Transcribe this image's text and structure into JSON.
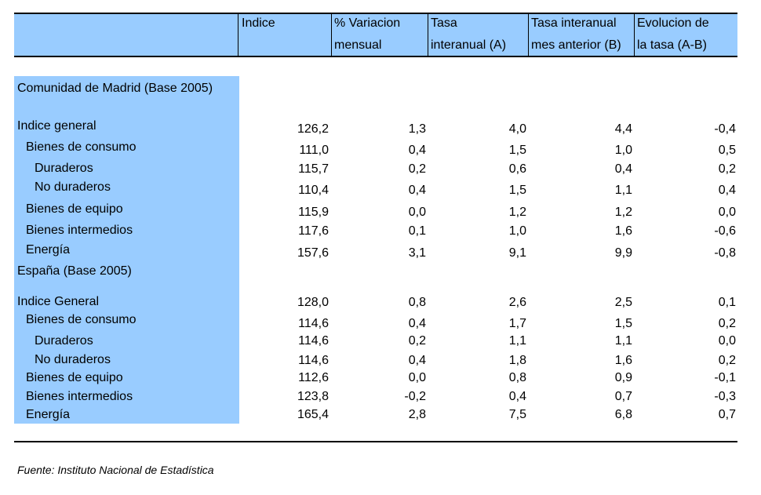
{
  "headers": [
    {
      "line1": "Indice",
      "line2": ""
    },
    {
      "line1": "% Variacion",
      "line2": "mensual"
    },
    {
      "line1": "Tasa",
      "line2": "interanual (A)"
    },
    {
      "line1": "Tasa interanual",
      "line2": "mes anterior (B)"
    },
    {
      "line1": "Evolucion de",
      "line2": "la tasa (A-B)"
    }
  ],
  "section_madrid": "Comunidad de Madrid (Base 2005)",
  "section_espana": "España (Base 2005)",
  "rows": [
    {
      "label": "Indice general",
      "values": [
        "126,2",
        "1,3",
        "4,0",
        "4,4",
        "-0,4"
      ]
    },
    {
      "label": "Bienes de consumo",
      "values": [
        "111,0",
        "0,4",
        "1,5",
        "1,0",
        "0,5"
      ]
    },
    {
      "label": "Duraderos",
      "values": [
        "115,7",
        "0,2",
        "0,6",
        "0,4",
        "0,2"
      ]
    },
    {
      "label": "No duraderos",
      "values": [
        "110,4",
        "0,4",
        "1,5",
        "1,1",
        "0,4"
      ]
    },
    {
      "label": "Bienes de equipo",
      "values": [
        "115,9",
        "0,0",
        "1,2",
        "1,2",
        "0,0"
      ]
    },
    {
      "label": "Bienes intermedios",
      "values": [
        "117,6",
        "0,1",
        "1,0",
        "1,6",
        "-0,6"
      ]
    },
    {
      "label": "Energía",
      "values": [
        "157,6",
        "3,1",
        "9,1",
        "9,9",
        "-0,8"
      ]
    },
    {
      "label": "Indice General",
      "values": [
        "128,0",
        "0,8",
        "2,6",
        "2,5",
        "0,1"
      ]
    },
    {
      "label": "Bienes de consumo",
      "values": [
        "114,6",
        "0,4",
        "1,7",
        "1,5",
        "0,2"
      ]
    },
    {
      "label": "Duraderos",
      "values": [
        "114,6",
        "0,2",
        "1,1",
        "1,1",
        "0,0"
      ]
    },
    {
      "label": "No duraderos",
      "values": [
        "114,6",
        "0,4",
        "1,8",
        "1,6",
        "0,2"
      ]
    },
    {
      "label": "Bienes de equipo",
      "values": [
        "112,6",
        "0,0",
        "0,8",
        "0,9",
        "-0,1"
      ]
    },
    {
      "label": "Bienes intermedios",
      "values": [
        "123,8",
        "-0,2",
        "0,4",
        "0,7",
        "-0,3"
      ]
    },
    {
      "label": "Energía",
      "values": [
        "165,4",
        "2,8",
        "7,5",
        "6,8",
        "0,7"
      ]
    }
  ],
  "footer": "Fuente: Instituto Nacional de Estadística"
}
